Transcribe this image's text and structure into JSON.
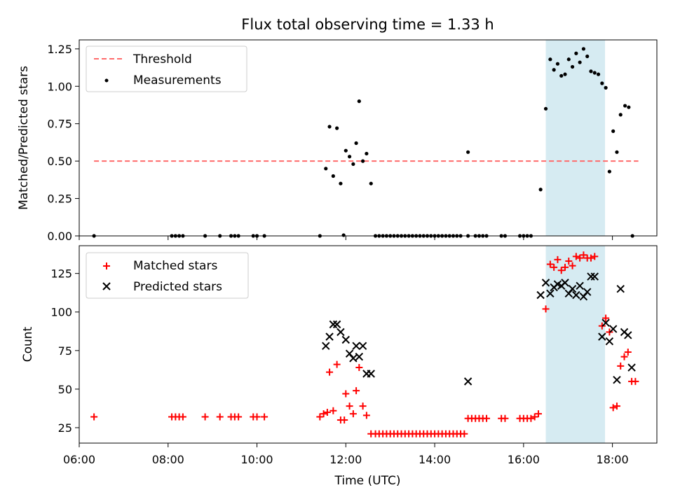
{
  "chart_data": [
    {
      "type": "scatter",
      "title": "Flux total observing time = 1.33 h",
      "ylabel": "Matched/Predicted stars",
      "xlabel": "",
      "xlim": [
        "06:00",
        "19:00"
      ],
      "ylim": [
        0,
        1.31
      ],
      "yticks": [
        "0.00",
        "0.25",
        "0.50",
        "0.75",
        "1.00",
        "1.25"
      ],
      "grid": false,
      "legend_position": "top-left",
      "highlight_span": {
        "start": "16:30",
        "end": "17:50",
        "color": "#add8e6"
      },
      "threshold": {
        "name": "Threshold",
        "value": 0.5,
        "start": "06:20",
        "end": "18:35",
        "color": "#ff6b6b",
        "style": "dashed"
      },
      "series": [
        {
          "name": "Measurements",
          "color": "#000000",
          "marker": "dot",
          "points": [
            [
              "06:20",
              0
            ],
            [
              "08:05",
              0
            ],
            [
              "08:10",
              0
            ],
            [
              "08:15",
              0
            ],
            [
              "08:20",
              0
            ],
            [
              "08:50",
              0
            ],
            [
              "09:10",
              0
            ],
            [
              "09:25",
              0
            ],
            [
              "09:30",
              0
            ],
            [
              "09:35",
              0
            ],
            [
              "09:55",
              0
            ],
            [
              "10:00",
              0
            ],
            [
              "10:10",
              0
            ],
            [
              "11:25",
              0
            ],
            [
              "11:33",
              0.45
            ],
            [
              "11:38",
              0.73
            ],
            [
              "11:43",
              0.4
            ],
            [
              "11:48",
              0.72
            ],
            [
              "11:53",
              0.35
            ],
            [
              "11:57",
              0.005
            ],
            [
              "12:00",
              0.57
            ],
            [
              "12:05",
              0.53
            ],
            [
              "12:10",
              0.48
            ],
            [
              "12:14",
              0.62
            ],
            [
              "12:18",
              0.9
            ],
            [
              "12:23",
              0.5
            ],
            [
              "12:28",
              0.55
            ],
            [
              "12:34",
              0.35
            ],
            [
              "12:40",
              0
            ],
            [
              "12:45",
              0
            ],
            [
              "12:50",
              0
            ],
            [
              "12:55",
              0
            ],
            [
              "13:00",
              0
            ],
            [
              "13:05",
              0
            ],
            [
              "13:10",
              0
            ],
            [
              "13:15",
              0
            ],
            [
              "13:20",
              0
            ],
            [
              "13:25",
              0
            ],
            [
              "13:30",
              0
            ],
            [
              "13:35",
              0
            ],
            [
              "13:40",
              0
            ],
            [
              "13:45",
              0
            ],
            [
              "13:50",
              0
            ],
            [
              "13:55",
              0
            ],
            [
              "14:00",
              0
            ],
            [
              "14:05",
              0
            ],
            [
              "14:10",
              0
            ],
            [
              "14:15",
              0
            ],
            [
              "14:20",
              0
            ],
            [
              "14:25",
              0
            ],
            [
              "14:30",
              0
            ],
            [
              "14:35",
              0
            ],
            [
              "14:45",
              0
            ],
            [
              "14:45",
              0.56
            ],
            [
              "14:55",
              0
            ],
            [
              "15:00",
              0
            ],
            [
              "15:05",
              0
            ],
            [
              "15:10",
              0
            ],
            [
              "15:30",
              0
            ],
            [
              "15:35",
              0
            ],
            [
              "15:55",
              0
            ],
            [
              "16:00",
              0
            ],
            [
              "16:05",
              0
            ],
            [
              "16:10",
              0
            ],
            [
              "16:23",
              0.31
            ],
            [
              "16:30",
              0.85
            ],
            [
              "16:36",
              1.18
            ],
            [
              "16:41",
              1.11
            ],
            [
              "16:46",
              1.15
            ],
            [
              "16:51",
              1.07
            ],
            [
              "16:56",
              1.08
            ],
            [
              "17:01",
              1.18
            ],
            [
              "17:06",
              1.13
            ],
            [
              "17:11",
              1.22
            ],
            [
              "17:16",
              1.16
            ],
            [
              "17:21",
              1.25
            ],
            [
              "17:26",
              1.2
            ],
            [
              "17:31",
              1.1
            ],
            [
              "17:36",
              1.09
            ],
            [
              "17:41",
              1.08
            ],
            [
              "17:46",
              1.02
            ],
            [
              "17:51",
              0.99
            ],
            [
              "17:56",
              0.43
            ],
            [
              "18:01",
              0.7
            ],
            [
              "18:06",
              0.56
            ],
            [
              "18:11",
              0.81
            ],
            [
              "18:17",
              0.87
            ],
            [
              "18:22",
              0.86
            ],
            [
              "18:27",
              0
            ]
          ]
        }
      ]
    },
    {
      "type": "scatter",
      "title": "",
      "ylabel": "Count",
      "xlabel": "Time (UTC)",
      "xlim": [
        "06:00",
        "19:00"
      ],
      "ylim": [
        15,
        143
      ],
      "yticks": [
        "25",
        "50",
        "75",
        "100",
        "125"
      ],
      "xticks": [
        "06:00",
        "08:00",
        "10:00",
        "12:00",
        "14:00",
        "16:00",
        "18:00"
      ],
      "grid": false,
      "legend_position": "top-left",
      "highlight_span": {
        "start": "16:30",
        "end": "17:50",
        "color": "#add8e6"
      },
      "series": [
        {
          "name": "Matched stars",
          "color": "#ff0000",
          "marker": "plus",
          "points": [
            [
              "06:20",
              32
            ],
            [
              "08:05",
              32
            ],
            [
              "08:10",
              32
            ],
            [
              "08:15",
              32
            ],
            [
              "08:20",
              32
            ],
            [
              "08:50",
              32
            ],
            [
              "09:10",
              32
            ],
            [
              "09:25",
              32
            ],
            [
              "09:30",
              32
            ],
            [
              "09:35",
              32
            ],
            [
              "09:55",
              32
            ],
            [
              "10:00",
              32
            ],
            [
              "10:10",
              32
            ],
            [
              "11:25",
              32
            ],
            [
              "11:30",
              34
            ],
            [
              "11:35",
              35
            ],
            [
              "11:38",
              61
            ],
            [
              "11:43",
              36
            ],
            [
              "11:48",
              66
            ],
            [
              "11:53",
              30
            ],
            [
              "11:58",
              30
            ],
            [
              "12:00",
              47
            ],
            [
              "12:05",
              39
            ],
            [
              "12:10",
              34
            ],
            [
              "12:14",
              49
            ],
            [
              "12:18",
              64
            ],
            [
              "12:23",
              39
            ],
            [
              "12:28",
              33
            ],
            [
              "12:34",
              21
            ],
            [
              "12:40",
              21
            ],
            [
              "12:45",
              21
            ],
            [
              "12:50",
              21
            ],
            [
              "12:55",
              21
            ],
            [
              "13:00",
              21
            ],
            [
              "13:05",
              21
            ],
            [
              "13:10",
              21
            ],
            [
              "13:15",
              21
            ],
            [
              "13:20",
              21
            ],
            [
              "13:25",
              21
            ],
            [
              "13:30",
              21
            ],
            [
              "13:35",
              21
            ],
            [
              "13:40",
              21
            ],
            [
              "13:45",
              21
            ],
            [
              "13:50",
              21
            ],
            [
              "13:55",
              21
            ],
            [
              "14:00",
              21
            ],
            [
              "14:05",
              21
            ],
            [
              "14:10",
              21
            ],
            [
              "14:15",
              21
            ],
            [
              "14:20",
              21
            ],
            [
              "14:25",
              21
            ],
            [
              "14:30",
              21
            ],
            [
              "14:35",
              21
            ],
            [
              "14:40",
              21
            ],
            [
              "14:45",
              31
            ],
            [
              "14:50",
              31
            ],
            [
              "14:55",
              31
            ],
            [
              "15:00",
              31
            ],
            [
              "15:05",
              31
            ],
            [
              "15:10",
              31
            ],
            [
              "15:30",
              31
            ],
            [
              "15:35",
              31
            ],
            [
              "15:55",
              31
            ],
            [
              "16:00",
              31
            ],
            [
              "16:05",
              31
            ],
            [
              "16:10",
              31
            ],
            [
              "16:15",
              32
            ],
            [
              "16:20",
              34
            ],
            [
              "16:30",
              102
            ],
            [
              "16:36",
              131
            ],
            [
              "16:41",
              129
            ],
            [
              "16:46",
              134
            ],
            [
              "16:51",
              127
            ],
            [
              "16:56",
              129
            ],
            [
              "17:01",
              133
            ],
            [
              "17:06",
              130
            ],
            [
              "17:11",
              136
            ],
            [
              "17:16",
              135
            ],
            [
              "17:21",
              137
            ],
            [
              "17:26",
              135
            ],
            [
              "17:31",
              135
            ],
            [
              "17:36",
              136
            ],
            [
              "17:46",
              91
            ],
            [
              "17:51",
              96
            ],
            [
              "17:56",
              87
            ],
            [
              "18:01",
              38
            ],
            [
              "18:06",
              39
            ],
            [
              "18:11",
              65
            ],
            [
              "18:16",
              71
            ],
            [
              "18:21",
              74
            ],
            [
              "18:26",
              55
            ],
            [
              "18:31",
              55
            ]
          ]
        },
        {
          "name": "Predicted stars",
          "color": "#000000",
          "marker": "x",
          "points": [
            [
              "11:33",
              78
            ],
            [
              "11:38",
              84
            ],
            [
              "11:43",
              92
            ],
            [
              "11:48",
              92
            ],
            [
              "11:53",
              87
            ],
            [
              "12:00",
              82
            ],
            [
              "12:05",
              73
            ],
            [
              "12:10",
              70
            ],
            [
              "12:14",
              78
            ],
            [
              "12:18",
              71
            ],
            [
              "12:23",
              78
            ],
            [
              "12:28",
              60
            ],
            [
              "12:34",
              60
            ],
            [
              "14:45",
              55
            ],
            [
              "16:23",
              111
            ],
            [
              "16:30",
              119
            ],
            [
              "16:36",
              112
            ],
            [
              "16:41",
              116
            ],
            [
              "16:46",
              118
            ],
            [
              "16:51",
              117
            ],
            [
              "16:56",
              119
            ],
            [
              "17:01",
              112
            ],
            [
              "17:06",
              115
            ],
            [
              "17:11",
              111
            ],
            [
              "17:16",
              117
            ],
            [
              "17:21",
              110
            ],
            [
              "17:26",
              113
            ],
            [
              "17:31",
              123
            ],
            [
              "17:36",
              123
            ],
            [
              "17:46",
              84
            ],
            [
              "17:51",
              93
            ],
            [
              "17:56",
              81
            ],
            [
              "18:01",
              89
            ],
            [
              "18:06",
              56
            ],
            [
              "18:11",
              115
            ],
            [
              "18:16",
              87
            ],
            [
              "18:21",
              85
            ],
            [
              "18:26",
              64
            ]
          ]
        }
      ]
    }
  ]
}
